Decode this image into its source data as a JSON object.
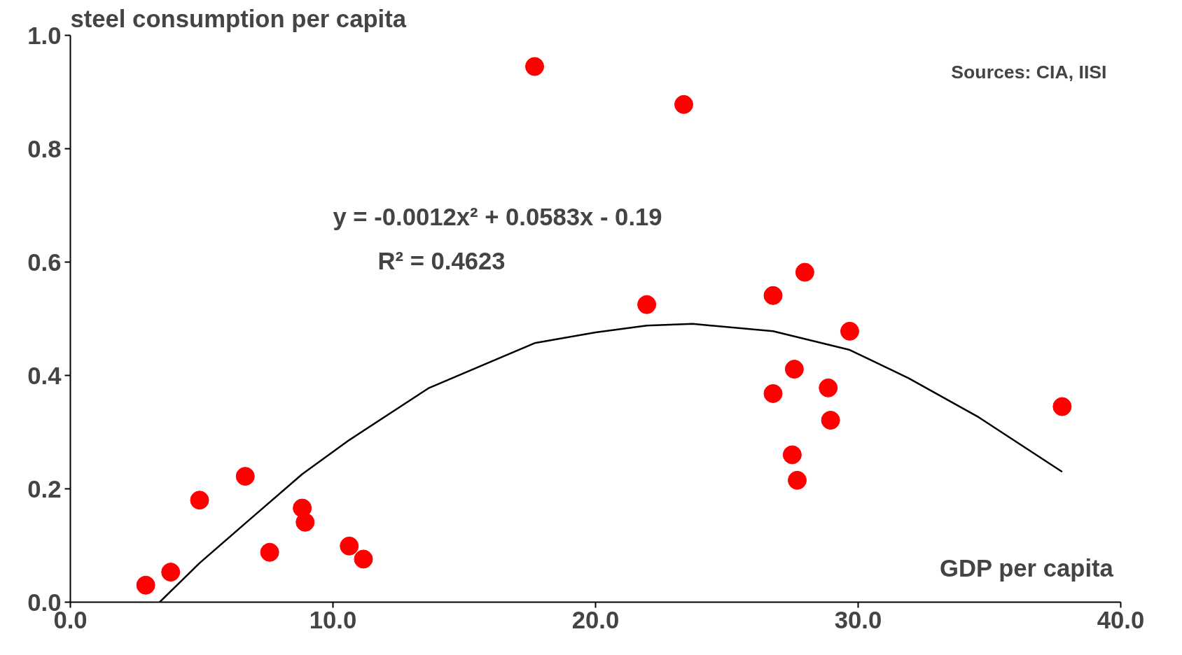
{
  "chart_data": {
    "type": "scatter",
    "xlabel": "GDP per capita",
    "ylabel": "steel consumption per capita",
    "xlim": [
      0,
      40
    ],
    "ylim": [
      0,
      1
    ],
    "xticks": [
      {
        "value": 0,
        "label": "0.0"
      },
      {
        "value": 10,
        "label": "10.0"
      },
      {
        "value": 20,
        "label": "20.0"
      },
      {
        "value": 30,
        "label": "30.0"
      },
      {
        "value": 40,
        "label": "40.0"
      }
    ],
    "yticks": [
      {
        "value": 0,
        "label": "0.0"
      },
      {
        "value": 0.2,
        "label": "0.2"
      },
      {
        "value": 0.4,
        "label": "0.4"
      },
      {
        "value": 0.6,
        "label": "0.6"
      },
      {
        "value": 0.8,
        "label": "0.8"
      },
      {
        "value": 1,
        "label": "1.0"
      }
    ],
    "grid": false,
    "annotations": [
      "Sources: CIA, IISI",
      "y = -0.0012x² + 0.0583x - 0.19",
      "R² = 0.4623"
    ],
    "series": [
      {
        "color": "#ff0000",
        "marker": "circle",
        "x": [
          2.87,
          3.82,
          4.92,
          6.66,
          7.59,
          8.83,
          8.94,
          10.62,
          11.16,
          17.68,
          21.95,
          23.36,
          26.76,
          26.76,
          27.97,
          27.57,
          27.49,
          27.68,
          28.86,
          28.95,
          29.68,
          37.77
        ],
        "values": [
          0.03,
          0.053,
          0.18,
          0.222,
          0.088,
          0.166,
          0.141,
          0.099,
          0.076,
          0.945,
          0.525,
          0.878,
          0.541,
          0.368,
          0.582,
          0.411,
          0.26,
          0.215,
          0.378,
          0.321,
          0.478,
          0.345
        ]
      },
      {
        "type": "line",
        "color": "#000000",
        "line_style": "solid",
        "x": [
          3.4,
          4.92,
          6.66,
          8.83,
          10.62,
          13.66,
          17.68,
          20.0,
          21.95,
          23.7,
          26.76,
          29.68,
          31.93,
          34.6,
          37.77
        ],
        "values": [
          0.0,
          0.069,
          0.139,
          0.226,
          0.286,
          0.378,
          0.457,
          0.476,
          0.488,
          0.491,
          0.478,
          0.445,
          0.395,
          0.326,
          0.23
        ]
      }
    ]
  }
}
